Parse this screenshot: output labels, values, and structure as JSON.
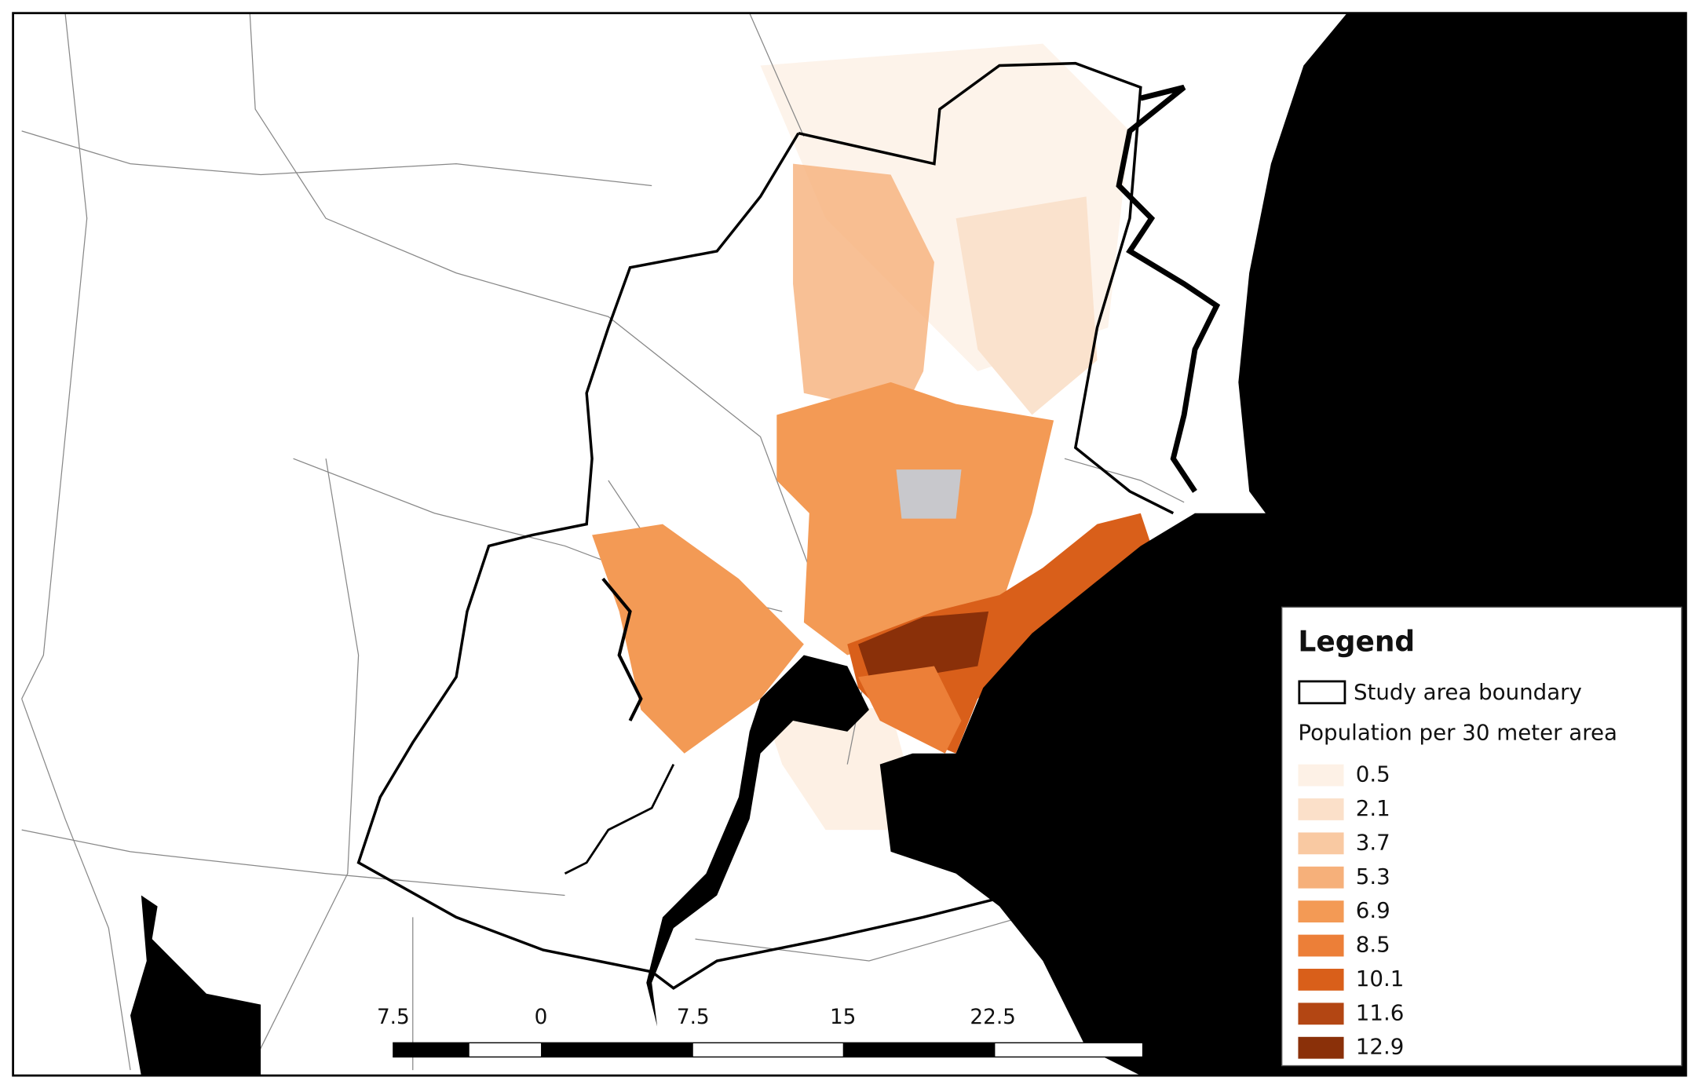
{
  "legend": {
    "title": "Legend",
    "boundary_label": "Study area boundary",
    "population_label": "Population per 30 meter area",
    "classes": [
      {
        "value": 0.5,
        "color": "#fdf1e6"
      },
      {
        "value": 2.1,
        "color": "#fbe0c9"
      },
      {
        "value": 3.7,
        "color": "#f9c9a2"
      },
      {
        "value": 5.3,
        "color": "#f6b07a"
      },
      {
        "value": 6.9,
        "color": "#f39a55"
      },
      {
        "value": 8.5,
        "color": "#ec7f38"
      },
      {
        "value": 10.1,
        "color": "#d95f1a"
      },
      {
        "value": 11.6,
        "color": "#b34613"
      },
      {
        "value": 12.9,
        "color": "#8a3009"
      }
    ]
  },
  "scale_bar": {
    "labels": [
      "7.5",
      "0",
      "7.5",
      "15",
      "22.5"
    ]
  }
}
